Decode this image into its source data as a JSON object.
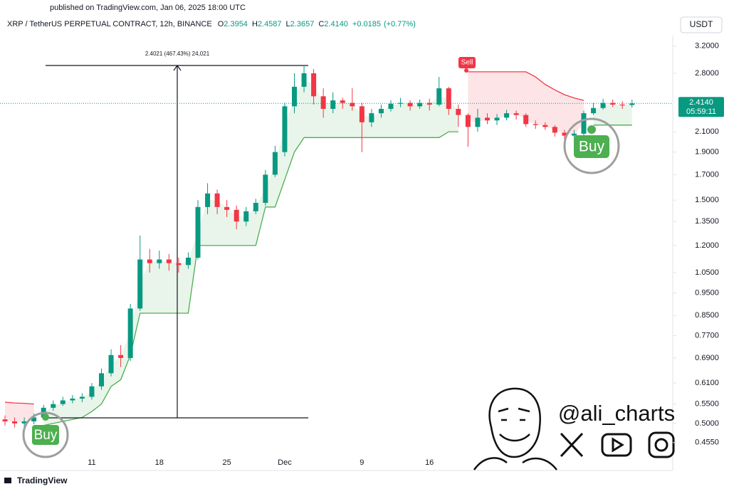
{
  "header": {
    "published": "published on TradingView.com, Jan 06, 2025 18:00 UTC",
    "symbol": "XRP / TetherUS PERPETUAL CONTRACT, 12h, BINANCE",
    "ohlc": [
      {
        "key": "O",
        "value": "2.3954"
      },
      {
        "key": "H",
        "value": "2.4587"
      },
      {
        "key": "L",
        "value": "2.3657"
      },
      {
        "key": "C",
        "value": "2.4140"
      }
    ],
    "change": "+0.0185",
    "change_pct": "(+0.77%)",
    "currency": "USDT"
  },
  "chart_data": {
    "type": "candlestick",
    "log_scale": true,
    "grid": false,
    "categories": [
      null,
      null,
      null,
      null,
      null,
      null,
      null,
      null,
      null,
      "11",
      null,
      null,
      null,
      null,
      null,
      null,
      "18",
      null,
      null,
      null,
      null,
      null,
      null,
      "25",
      null,
      null,
      null,
      null,
      null,
      "Dec",
      null,
      null,
      null,
      null,
      null,
      null,
      null,
      "9",
      null,
      null,
      null,
      null,
      null,
      null,
      "16",
      null,
      null,
      null,
      null,
      null,
      null,
      null,
      null,
      null,
      null,
      null,
      null,
      null,
      null,
      null,
      null,
      null,
      null,
      null,
      null,
      null
    ],
    "open": [
      0.51,
      0.505,
      0.5,
      0.505,
      0.515,
      0.54,
      0.55,
      0.56,
      0.565,
      0.57,
      0.6,
      0.64,
      0.7,
      0.69,
      0.88,
      1.12,
      1.1,
      1.12,
      1.1,
      1.09,
      1.13,
      1.45,
      1.55,
      1.45,
      1.43,
      1.35,
      1.42,
      1.48,
      1.7,
      1.9,
      2.38,
      2.62,
      2.8,
      2.5,
      2.35,
      2.45,
      2.42,
      2.38,
      2.2,
      2.3,
      2.35,
      2.41,
      2.42,
      2.38,
      2.42,
      2.4,
      2.6,
      2.35,
      2.28,
      2.15,
      2.25,
      2.22,
      2.25,
      2.3,
      2.28,
      2.18,
      2.17,
      2.15,
      2.09,
      2.06,
      2.08,
      2.3,
      2.36,
      2.42,
      2.4,
      2.3954
    ],
    "high": [
      0.52,
      0.515,
      0.515,
      0.525,
      0.548,
      0.56,
      0.57,
      0.575,
      0.58,
      0.61,
      0.655,
      0.72,
      0.735,
      0.9,
      1.26,
      1.18,
      1.17,
      1.15,
      1.13,
      1.16,
      1.5,
      1.63,
      1.58,
      1.5,
      1.46,
      1.45,
      1.51,
      1.74,
      1.96,
      2.42,
      2.8,
      2.91,
      2.86,
      2.6,
      2.55,
      2.48,
      2.6,
      2.42,
      2.35,
      2.4,
      2.45,
      2.48,
      2.45,
      2.46,
      2.47,
      2.75,
      2.62,
      2.4,
      2.3,
      2.35,
      2.3,
      2.29,
      2.34,
      2.33,
      2.3,
      2.22,
      2.2,
      2.17,
      2.12,
      2.12,
      2.33,
      2.42,
      2.47,
      2.46,
      2.44,
      2.4587
    ],
    "low": [
      0.495,
      0.49,
      0.492,
      0.498,
      0.51,
      0.532,
      0.545,
      0.552,
      0.555,
      0.562,
      0.59,
      0.63,
      0.66,
      0.68,
      0.87,
      1.05,
      1.07,
      1.06,
      1.05,
      1.07,
      1.12,
      1.4,
      1.4,
      1.38,
      1.3,
      1.32,
      1.4,
      1.46,
      1.68,
      1.86,
      2.3,
      2.55,
      2.4,
      2.25,
      2.3,
      2.35,
      2.33,
      1.9,
      2.15,
      2.25,
      2.32,
      2.37,
      2.33,
      2.35,
      2.33,
      2.38,
      2.28,
      2.15,
      1.95,
      2.1,
      2.18,
      2.17,
      2.22,
      2.23,
      2.15,
      2.13,
      2.12,
      2.05,
      2.02,
      2.04,
      2.06,
      2.28,
      2.34,
      2.37,
      2.35,
      2.3657
    ],
    "close": [
      0.505,
      0.5,
      0.505,
      0.515,
      0.54,
      0.55,
      0.56,
      0.565,
      0.57,
      0.6,
      0.64,
      0.7,
      0.69,
      0.88,
      1.12,
      1.1,
      1.12,
      1.1,
      1.09,
      1.13,
      1.45,
      1.55,
      1.45,
      1.43,
      1.35,
      1.42,
      1.48,
      1.7,
      1.9,
      2.38,
      2.62,
      2.8,
      2.5,
      2.35,
      2.45,
      2.42,
      2.38,
      2.2,
      2.3,
      2.35,
      2.41,
      2.42,
      2.38,
      2.42,
      2.4,
      2.6,
      2.35,
      2.28,
      2.15,
      2.25,
      2.22,
      2.25,
      2.3,
      2.28,
      2.18,
      2.17,
      2.15,
      2.09,
      2.06,
      2.08,
      2.3,
      2.36,
      2.42,
      2.4,
      2.39,
      2.414
    ],
    "up_color": "#089981",
    "down_color": "#f23645",
    "series": [
      {
        "color": "#4caf50",
        "fill": "rgba(76,175,80,0.12)",
        "values": [
          null,
          null,
          null,
          null,
          0.495,
          0.5,
          0.505,
          0.51,
          0.515,
          0.53,
          0.55,
          0.6,
          0.62,
          0.7,
          0.86,
          0.86,
          0.86,
          0.86,
          0.86,
          0.86,
          1.2,
          1.2,
          1.2,
          1.2,
          1.2,
          1.2,
          1.2,
          1.45,
          1.45,
          1.66,
          1.9,
          2.04,
          2.04,
          2.04,
          2.04,
          2.04,
          2.04,
          2.04,
          2.04,
          2.04,
          2.04,
          2.04,
          2.04,
          2.04,
          2.04,
          2.04,
          2.1,
          2.1,
          null,
          null,
          null,
          null,
          null,
          null,
          null,
          null,
          null,
          null,
          null,
          null,
          null,
          2.17,
          2.17,
          2.17,
          2.17,
          2.17
        ]
      },
      {
        "color": "#f23645",
        "fill": "rgba(242,54,69,0.13)",
        "values": [
          0.555,
          0.553,
          0.552,
          0.55,
          null,
          null,
          null,
          null,
          null,
          null,
          null,
          null,
          null,
          null,
          null,
          null,
          null,
          null,
          null,
          null,
          null,
          null,
          null,
          null,
          null,
          null,
          null,
          null,
          null,
          null,
          null,
          null,
          null,
          null,
          null,
          null,
          null,
          null,
          null,
          null,
          null,
          null,
          null,
          null,
          null,
          null,
          null,
          null,
          2.82,
          2.82,
          2.82,
          2.82,
          2.82,
          2.82,
          2.82,
          2.75,
          2.65,
          2.58,
          2.52,
          2.48,
          2.45,
          null,
          null,
          null,
          null,
          null
        ]
      }
    ],
    "ylim": [
      0.398,
      3.37
    ],
    "yticks": [
      {
        "value": 3.2,
        "label": "3.2000"
      },
      {
        "value": 2.8,
        "label": "2.8000"
      },
      {
        "value": 2.1,
        "label": "2.1000"
      },
      {
        "value": 1.9,
        "label": "1.9000"
      },
      {
        "value": 1.7,
        "label": "1.7000"
      },
      {
        "value": 1.5,
        "label": "1.5000"
      },
      {
        "value": 1.35,
        "label": "1.3500"
      },
      {
        "value": 1.2,
        "label": "1.2000"
      },
      {
        "value": 1.05,
        "label": "1.0500"
      },
      {
        "value": 0.95,
        "label": "0.9500"
      },
      {
        "value": 0.85,
        "label": "0.8500"
      },
      {
        "value": 0.77,
        "label": "0.7700"
      },
      {
        "value": 0.69,
        "label": "0.6900"
      },
      {
        "value": 0.61,
        "label": "0.6100"
      },
      {
        "value": 0.55,
        "label": "0.5500"
      },
      {
        "value": 0.5,
        "label": "0.5000"
      },
      {
        "value": 0.455,
        "label": "0.4550"
      }
    ],
    "last_price": {
      "value": 2.414,
      "label": "2.4140"
    },
    "countdown": "05:59:11",
    "measure_label": "2.4021 (467.43%) 24,021",
    "signals": [
      {
        "label": "Sell"
      },
      {
        "label": "Buy"
      },
      {
        "label": "Buy"
      }
    ]
  },
  "watermark": "@ali_charts",
  "footer": "TradingView"
}
